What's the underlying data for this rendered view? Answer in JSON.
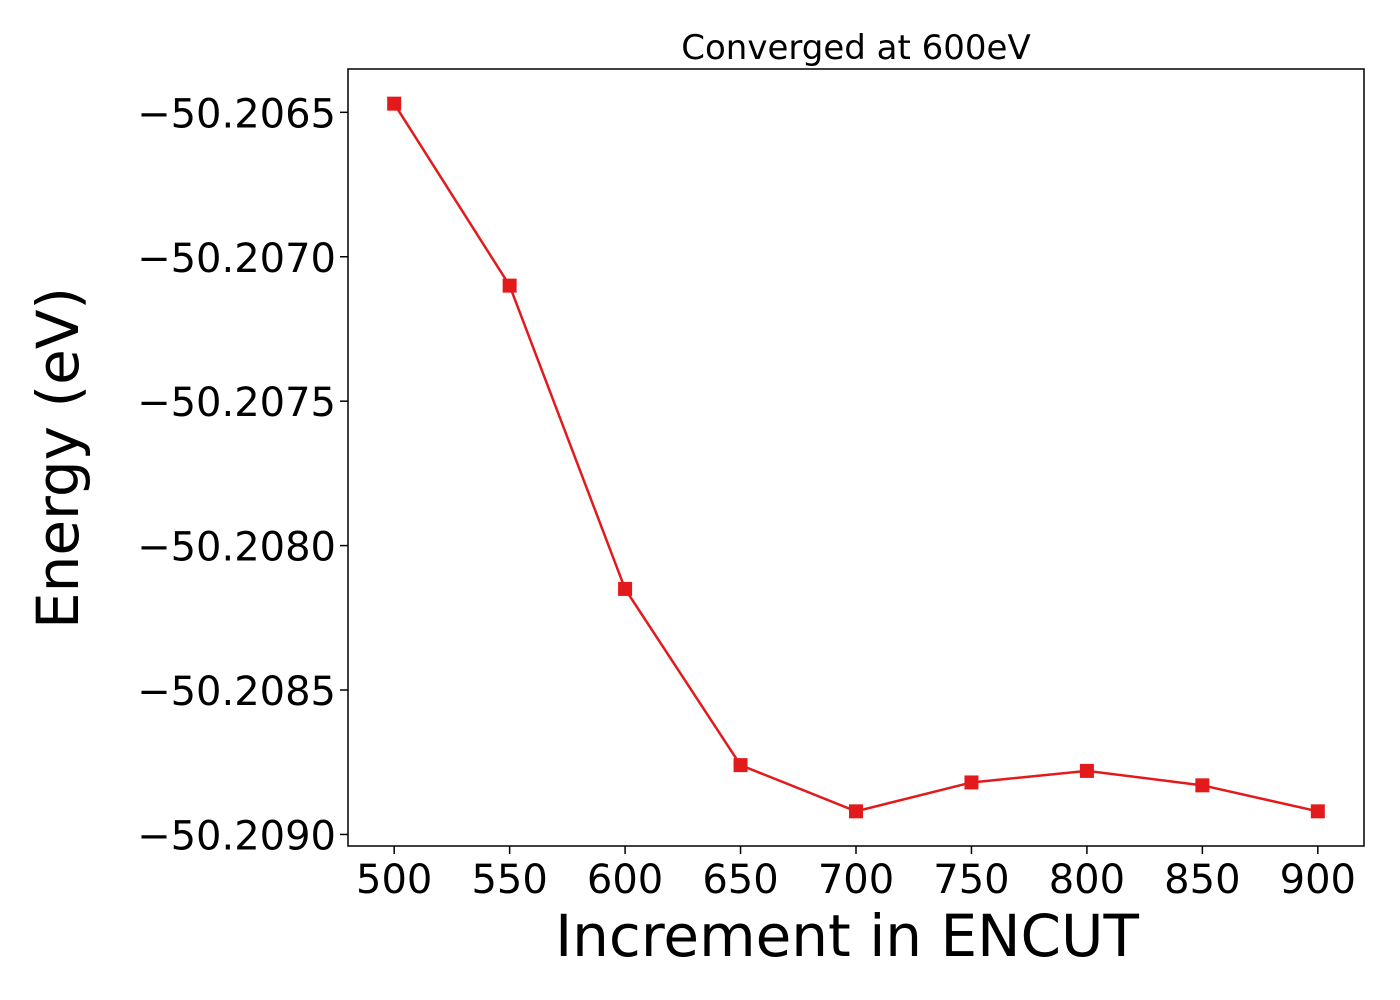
{
  "chart_data": {
    "type": "line",
    "title": "Converged at 600eV",
    "xlabel": "Increment in ENCUT",
    "ylabel": "Energy (eV)",
    "x": [
      500,
      550,
      600,
      650,
      700,
      750,
      800,
      850,
      900
    ],
    "series": [
      {
        "values": [
          -50.20647,
          -50.2071,
          -50.20815,
          -50.20876,
          -50.20892,
          -50.20882,
          -50.20878,
          -50.20883,
          -50.20892
        ],
        "color": "#e31a1c",
        "marker": "square"
      }
    ],
    "xticks": [
      500,
      550,
      600,
      650,
      700,
      750,
      800,
      850,
      900
    ],
    "xtick_labels": [
      "500",
      "550",
      "600",
      "650",
      "700",
      "750",
      "800",
      "850",
      "900"
    ],
    "yticks": [
      -50.2065,
      -50.207,
      -50.2075,
      -50.208,
      -50.2085,
      -50.209
    ],
    "ytick_labels": [
      "−50.2065",
      "−50.2070",
      "−50.2075",
      "−50.2080",
      "−50.2085",
      "−50.2090"
    ],
    "xlim": [
      480,
      920
    ],
    "ylim": [
      -50.20904,
      -50.20635
    ],
    "grid": false,
    "legend": "none"
  }
}
